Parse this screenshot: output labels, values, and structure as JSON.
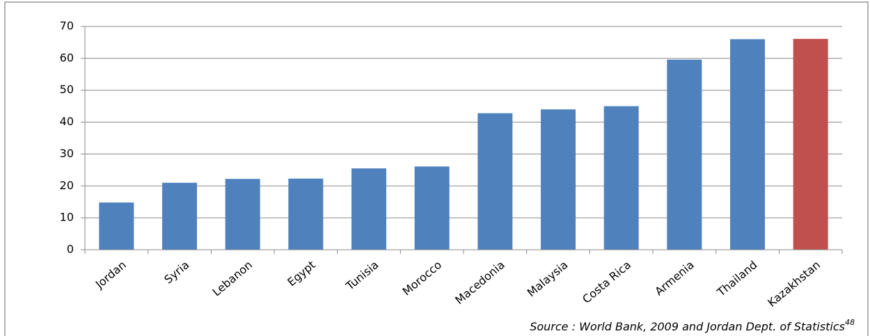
{
  "chart_data": {
    "type": "bar",
    "categories": [
      "Jordan",
      "Syria",
      "Lebanon",
      "Egypt",
      "Tunisia",
      "Morocco",
      "Macedonia",
      "Malaysia",
      "Costa Rica",
      "Armenia",
      "Thailand",
      "Kazakhstan"
    ],
    "values": [
      14.8,
      21,
      22.2,
      22.3,
      25.5,
      26.1,
      42.8,
      44,
      45,
      59.6,
      66,
      66.1
    ],
    "colors": [
      "#4f81bd",
      "#4f81bd",
      "#4f81bd",
      "#4f81bd",
      "#4f81bd",
      "#4f81bd",
      "#4f81bd",
      "#4f81bd",
      "#4f81bd",
      "#4f81bd",
      "#4f81bd",
      "#c0504d"
    ],
    "ylim": [
      0,
      70
    ],
    "yticks": [
      0,
      10,
      20,
      30,
      40,
      50,
      60,
      70
    ],
    "grid": true,
    "source": {
      "text": "Source : World Bank, 2009 and Jordan Dept. of Statistics",
      "superscript": "48"
    }
  }
}
